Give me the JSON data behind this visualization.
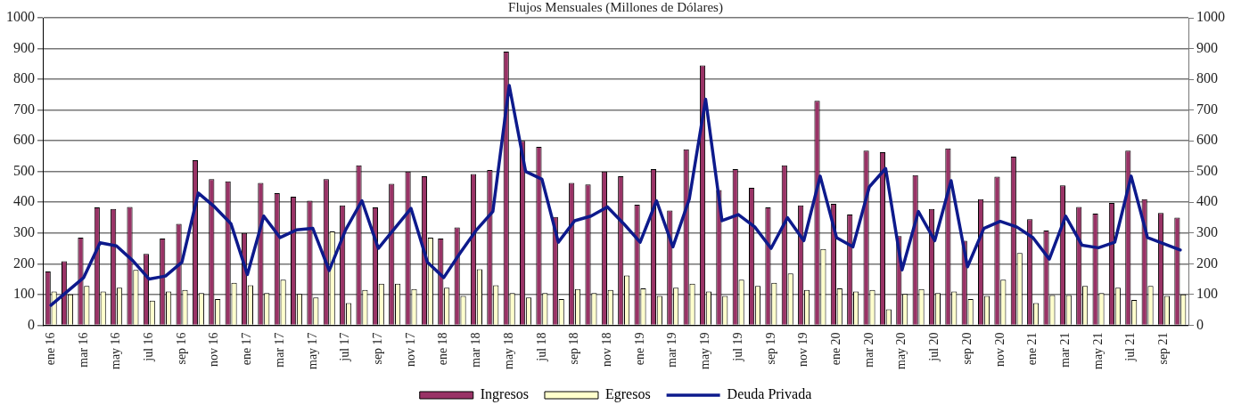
{
  "chart_data": {
    "type": "bar",
    "title": "Flujos Mensuales (Millones de Dólares)",
    "categories": [
      "ene 16",
      null,
      "mar 16",
      null,
      "may 16",
      null,
      "jul 16",
      null,
      "sep 16",
      null,
      "nov 16",
      null,
      "ene 17",
      null,
      "mar 17",
      null,
      "may 17",
      null,
      "jul 17",
      null,
      "sep 17",
      null,
      "nov 17",
      null,
      "ene 18",
      null,
      "mar 18",
      null,
      "may 18",
      null,
      "jul 18",
      null,
      "sep 18",
      null,
      "nov 18",
      null,
      "ene 19",
      null,
      "mar 19",
      null,
      "may 19",
      null,
      "jul 19",
      null,
      "sep 19",
      null,
      "nov 19",
      null,
      "ene 20",
      null,
      "mar 20",
      null,
      "may 20",
      null,
      "jul 20",
      null,
      "sep 20",
      null,
      "nov 20",
      null,
      "ene 21",
      null,
      "mar 21",
      null,
      "may 21",
      null,
      "jul 21",
      null,
      "sep 21",
      null
    ],
    "series": [
      {
        "name": "Ingresos",
        "color": "#993366",
        "values": [
          175,
          208,
          285,
          383,
          378,
          385,
          232,
          282,
          330,
          537,
          475,
          468,
          300,
          463,
          430,
          418,
          405,
          475,
          390,
          520,
          383,
          460,
          500,
          485,
          282,
          318,
          492,
          505,
          890,
          600,
          580,
          352,
          463,
          458,
          500,
          485,
          392,
          508,
          373,
          572,
          845,
          440,
          508,
          447,
          383,
          520,
          390,
          730,
          395,
          360,
          568,
          563,
          290,
          488,
          378,
          575,
          275,
          410,
          483,
          548,
          345,
          308,
          455,
          385,
          363,
          398,
          568,
          410,
          365,
          350
        ]
      },
      {
        "name": "Egresos",
        "color": "#ffffcc",
        "values": [
          110,
          100,
          128,
          110,
          122,
          180,
          80,
          110,
          115,
          105,
          85,
          138,
          130,
          105,
          148,
          102,
          90,
          305,
          72,
          115,
          135,
          135,
          118,
          285,
          122,
          95,
          182,
          130,
          105,
          90,
          105,
          85,
          118,
          105,
          115,
          162,
          120,
          95,
          122,
          135,
          110,
          95,
          148,
          128,
          138,
          168,
          115,
          248,
          120,
          110,
          115,
          52,
          102,
          118,
          105,
          110,
          85,
          95,
          148,
          235,
          72,
          98,
          98,
          128,
          105,
          122,
          82,
          128,
          95,
          100
        ]
      },
      {
        "name": "Deuda Privada",
        "type": "line",
        "color": "#0d1a8c",
        "values": [
          65,
          110,
          155,
          268,
          258,
          210,
          150,
          160,
          205,
          430,
          385,
          330,
          165,
          355,
          285,
          310,
          315,
          178,
          310,
          405,
          250,
          315,
          380,
          205,
          155,
          235,
          310,
          370,
          780,
          500,
          475,
          270,
          340,
          355,
          385,
          330,
          270,
          405,
          255,
          410,
          735,
          340,
          360,
          320,
          250,
          350,
          275,
          485,
          285,
          255,
          450,
          510,
          180,
          370,
          275,
          470,
          190,
          315,
          338,
          320,
          285,
          215,
          355,
          260,
          252,
          270,
          485,
          285,
          265,
          245
        ]
      }
    ],
    "ylim": [
      0,
      1000
    ],
    "yticks": [
      0,
      100,
      200,
      300,
      400,
      500,
      600,
      700,
      800,
      900,
      1000
    ],
    "y2lim": [
      0,
      1000
    ],
    "y2ticks": [
      0,
      100,
      200,
      300,
      400,
      500,
      600,
      700,
      800,
      900,
      1000
    ],
    "grid": "y",
    "legend": "bottom",
    "marker": "none",
    "line_style": "solid"
  }
}
